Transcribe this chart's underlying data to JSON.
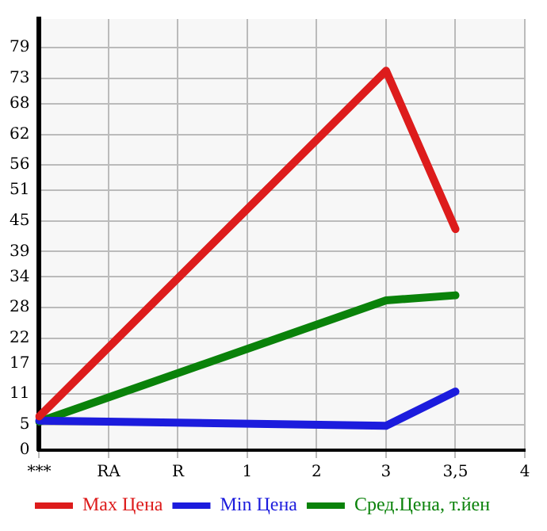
{
  "chart_data": {
    "type": "line",
    "categories": [
      "***",
      "RA",
      "R",
      "1",
      "2",
      "3",
      "3,5",
      "4"
    ],
    "series": [
      {
        "name": "Max Цена",
        "color": "#dd1c1c",
        "values": [
          6.6,
          null,
          null,
          null,
          null,
          74.5,
          43.4,
          null
        ]
      },
      {
        "name": "Min Цена",
        "color": "#1c1cdd",
        "values": [
          5.8,
          null,
          null,
          null,
          null,
          4.8,
          11.5,
          null
        ]
      },
      {
        "name": "Сред.Цена, т.йен",
        "color": "#0a820a",
        "values": [
          5.6,
          null,
          null,
          null,
          null,
          29.4,
          30.4,
          null
        ]
      }
    ],
    "ylim": [
      0,
      84.64
    ],
    "yticks": [
      0,
      5,
      11,
      17,
      22,
      28,
      34,
      39,
      45,
      51,
      56,
      62,
      68,
      73,
      79
    ],
    "grid": true,
    "legend": "bottom",
    "marker": "none",
    "line_style": "solid"
  }
}
